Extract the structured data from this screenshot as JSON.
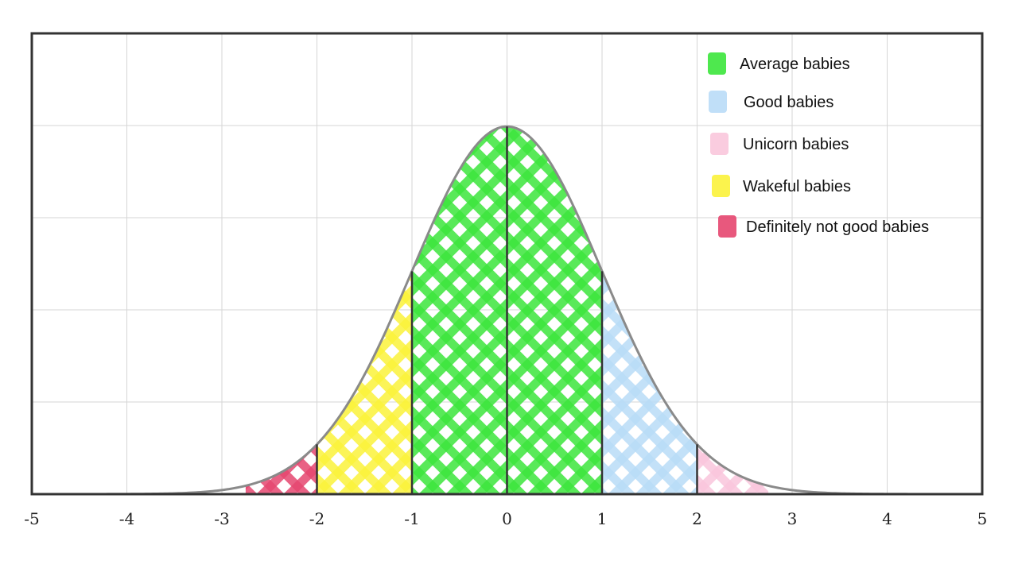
{
  "chart_data": {
    "type": "area",
    "title": "",
    "xlabel": "",
    "ylabel": "",
    "xlim": [
      -5,
      5
    ],
    "ylim": [
      0,
      0.5
    ],
    "x_ticks": [
      "-5",
      "-4",
      "-3",
      "-2",
      "-1",
      "0",
      "1",
      "2",
      "3",
      "4",
      "5"
    ],
    "curve": "standard normal density",
    "grid": true,
    "legend_position": "top-right",
    "series": [
      {
        "name": "Average babies",
        "from": -1,
        "to": 1,
        "color": "#3be53b"
      },
      {
        "name": "Good babies",
        "from": 1,
        "to": 2,
        "color": "#b9dcf7"
      },
      {
        "name": "Unicorn babies",
        "from": 2,
        "to": 2.75,
        "color": "#f9c6dc"
      },
      {
        "name": "Wakeful babies",
        "from": -2,
        "to": -1,
        "color": "#fbf23a"
      },
      {
        "name": "Definitely not good babies",
        "from": -2.75,
        "to": -2,
        "color": "#e6466f"
      }
    ],
    "dividers": [
      -2,
      -1,
      0,
      1,
      2
    ]
  }
}
